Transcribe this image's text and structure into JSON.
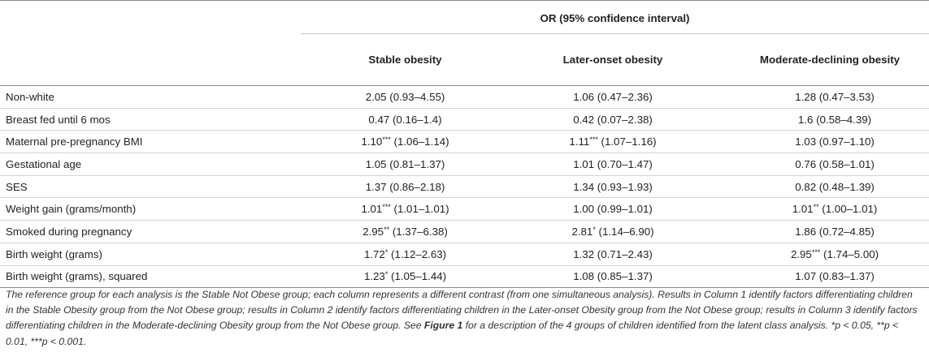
{
  "header": {
    "group_title": "OR (95% confidence interval)",
    "columns": [
      "Stable obesity",
      "Later-onset obesity",
      "Moderate-declining obesity"
    ]
  },
  "rows": [
    {
      "label": "Non-white",
      "c1": {
        "or": "2.05",
        "sig": "",
        "ci": " (0.93–4.55)"
      },
      "c2": {
        "or": "1.06",
        "sig": "",
        "ci": " (0.47–2.36)"
      },
      "c3": {
        "or": "1.28",
        "sig": "",
        "ci": " (0.47–3.53)"
      }
    },
    {
      "label": "Breast fed until 6 mos",
      "c1": {
        "or": "0.47",
        "sig": "",
        "ci": " (0.16–1.4)"
      },
      "c2": {
        "or": "0.42",
        "sig": "",
        "ci": " (0.07–2.38)"
      },
      "c3": {
        "or": "1.6",
        "sig": "",
        "ci": " (0.58–4.39)"
      }
    },
    {
      "label": "Maternal pre-pregnancy BMI",
      "c1": {
        "or": "1.10",
        "sig": "***",
        "ci": " (1.06–1.14)"
      },
      "c2": {
        "or": "1.11",
        "sig": "***",
        "ci": " (1.07–1.16)"
      },
      "c3": {
        "or": "1.03",
        "sig": "",
        "ci": " (0.97–1.10)"
      }
    },
    {
      "label": "Gestational age",
      "c1": {
        "or": "1.05",
        "sig": "",
        "ci": " (0.81–1.37)"
      },
      "c2": {
        "or": "1.01",
        "sig": "",
        "ci": " (0.70–1.47)"
      },
      "c3": {
        "or": "0.76",
        "sig": "",
        "ci": " (0.58–1.01)"
      }
    },
    {
      "label": "SES",
      "c1": {
        "or": "1.37",
        "sig": "",
        "ci": " (0.86–2.18)"
      },
      "c2": {
        "or": "1.34",
        "sig": "",
        "ci": " (0.93–1.93)"
      },
      "c3": {
        "or": "0.82",
        "sig": "",
        "ci": " (0.48–1.39)"
      }
    },
    {
      "label": "Weight gain (grams/month)",
      "c1": {
        "or": "1.01",
        "sig": "***",
        "ci": " (1.01–1.01)"
      },
      "c2": {
        "or": "1.00",
        "sig": "",
        "ci": " (0.99–1.01)"
      },
      "c3": {
        "or": "1.01",
        "sig": "**",
        "ci": " (1.00–1.01)"
      }
    },
    {
      "label": "Smoked during pregnancy",
      "c1": {
        "or": "2.95",
        "sig": "**",
        "ci": " (1.37–6.38)"
      },
      "c2": {
        "or": "2.81",
        "sig": "*",
        "ci": " (1.14–6.90)"
      },
      "c3": {
        "or": "1.86",
        "sig": "",
        "ci": " (0.72–4.85)"
      }
    },
    {
      "label": "Birth weight (grams)",
      "c1": {
        "or": "1.72",
        "sig": "*",
        "ci": " (1.12–2.63)"
      },
      "c2": {
        "or": "1.32",
        "sig": "",
        "ci": " (0.71–2.43)"
      },
      "c3": {
        "or": "2.95",
        "sig": "***",
        "ci": " (1.74–5.00)"
      }
    },
    {
      "label": "Birth weight (grams), squared",
      "c1": {
        "or": "1.23",
        "sig": "*",
        "ci": " (1.05–1.44)"
      },
      "c2": {
        "or": "1.08",
        "sig": "",
        "ci": " (0.85–1.37)"
      },
      "c3": {
        "or": "1.07",
        "sig": "",
        "ci": " (0.83–1.37)"
      }
    }
  ],
  "footnote": {
    "part1": "The reference group for each analysis is the Stable Not Obese group; each column represents a different contrast (from one simultaneous analysis). Results in Column 1 identify factors differentiating children in the Stable Obesity group from the Not Obese group; results in Column 2 identify factors differentiating children in the Later-onset Obesity group from the Not Obese group; results in Column 3 identify factors differentiating children in the Moderate-declining Obesity group from the Not Obese group. See ",
    "figure_ref": "Figure 1",
    "part2": " for a description of the 4 groups of children identified from the latent class analysis. *p < 0.05, **p < 0.01, ***p < 0.001."
  }
}
